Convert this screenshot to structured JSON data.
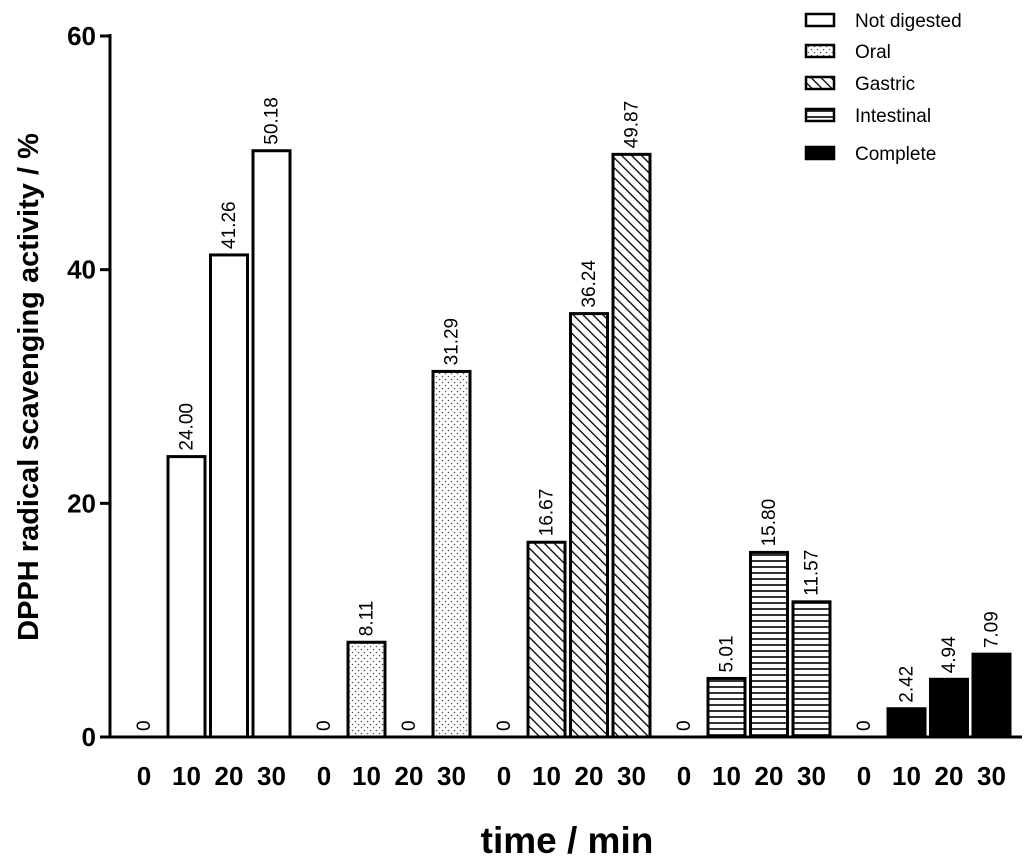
{
  "chart_data": {
    "type": "bar",
    "title": "",
    "xlabel": "time / min",
    "ylabel": "DPPH radical scavenging activity / %",
    "ylim": [
      0,
      60
    ],
    "yticks": [
      0,
      20,
      40,
      60
    ],
    "ytick_labels": [
      "0",
      "20",
      "40",
      "60"
    ],
    "categories": [
      "0",
      "10",
      "20",
      "30"
    ],
    "legend_position": "top-right",
    "series": [
      {
        "name": "Not digested",
        "pattern": "open",
        "values": [
          0,
          24.0,
          41.26,
          50.18
        ],
        "labels": [
          "0",
          "24.00",
          "41.26",
          "50.18"
        ]
      },
      {
        "name": "Oral",
        "pattern": "dotted",
        "values": [
          0,
          8.11,
          0,
          31.29
        ],
        "labels": [
          "0",
          "8.11",
          "0",
          "31.29"
        ]
      },
      {
        "name": "Gastric",
        "pattern": "diagonal",
        "values": [
          0,
          16.67,
          36.24,
          49.87
        ],
        "labels": [
          "0",
          "16.67",
          "36.24",
          "49.87"
        ]
      },
      {
        "name": "Intestinal",
        "pattern": "horizontal",
        "values": [
          0,
          5.01,
          15.8,
          11.57
        ],
        "labels": [
          "0",
          "5.01",
          "15.80",
          "11.57"
        ]
      },
      {
        "name": "Complete",
        "pattern": "solid",
        "values": [
          0,
          2.42,
          4.94,
          7.09
        ],
        "labels": [
          "0",
          "2.42",
          "4.94",
          "7.09"
        ]
      }
    ]
  },
  "colors": {
    "stroke": "#000000",
    "open_fill": "#ffffff",
    "solid_fill": "#000000"
  }
}
